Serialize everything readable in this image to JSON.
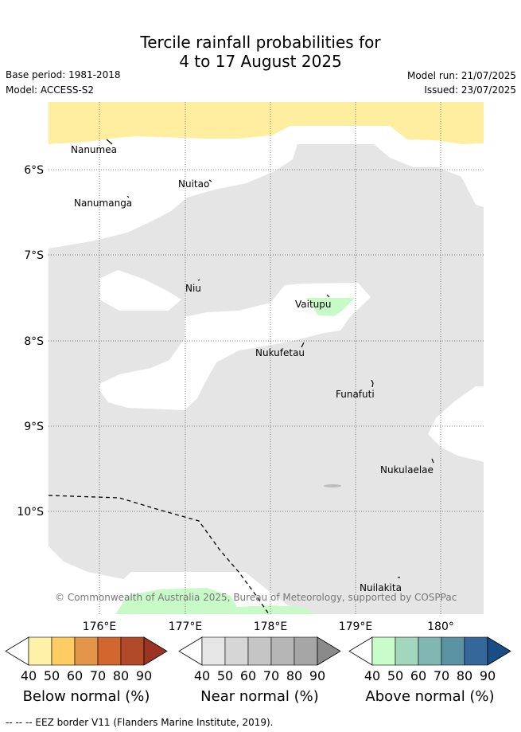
{
  "header": {
    "title_line1": "Tercile rainfall probabilities for",
    "title_line2": "4 to 17 August 2025",
    "base_period": "Base period: 1981-2018",
    "model": "Model: ACCESS-S2",
    "model_run": "Model run: 21/07/2025",
    "issued": "Issued: 23/07/2025"
  },
  "map": {
    "lon_ticks": [
      "176°E",
      "177°E",
      "178°E",
      "179°E",
      "180°"
    ],
    "lat_ticks": [
      "6°S",
      "7°S",
      "8°S",
      "9°S",
      "10°S"
    ],
    "islands": [
      {
        "name": "Nanumea"
      },
      {
        "name": "Nuitao"
      },
      {
        "name": "Nanumanga"
      },
      {
        "name": "Niu"
      },
      {
        "name": "Vaitupu"
      },
      {
        "name": "Nukufetau"
      },
      {
        "name": "Funafuti"
      },
      {
        "name": "Nukulaelae"
      },
      {
        "name": "Nuilakita"
      }
    ],
    "credit": "© Commonwealth of Australia 2025, Bureau of Meteorology, supported by COSPPac",
    "colors": {
      "below_40": "#ffeda0",
      "near_40": "#e5e5e5",
      "above_40": "#c8fac8"
    }
  },
  "colorbars": [
    {
      "title": "Below normal (%)",
      "ticks": [
        "40",
        "50",
        "60",
        "70",
        "80",
        "90"
      ],
      "colors": [
        "#fff1a8",
        "#fdcd63",
        "#e3964a",
        "#d1672f",
        "#b14a28",
        "#9c3424"
      ]
    },
    {
      "title": "Near normal (%)",
      "ticks": [
        "40",
        "50",
        "60",
        "70",
        "80",
        "90"
      ],
      "colors": [
        "#e6e6e6",
        "#d6d6d6",
        "#c5c5c5",
        "#b6b6b6",
        "#a6a6a6",
        "#8a8a8a"
      ]
    },
    {
      "title": "Above normal (%)",
      "ticks": [
        "40",
        "50",
        "60",
        "70",
        "80",
        "90"
      ],
      "colors": [
        "#c8fcc8",
        "#a2d7bd",
        "#80b7b2",
        "#5c93a3",
        "#35679b",
        "#194d85"
      ]
    }
  ],
  "footnote": "--  --  -- EEZ border V11 (Flanders Marine Institute, 2019)."
}
